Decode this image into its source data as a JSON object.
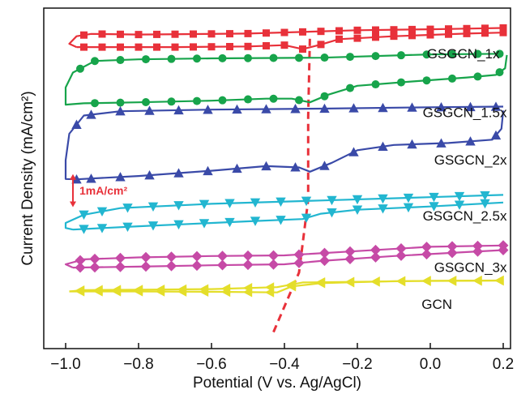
{
  "chart_data": {
    "type": "line",
    "title": "",
    "xlabel": "Potential (V vs. Ag/AgCl)",
    "ylabel": "Current Density (mA/cm²)",
    "xlim": [
      -1.06,
      0.22
    ],
    "ylim": [
      -0.5,
      9.8
    ],
    "x_ticks": [
      -1.0,
      -0.8,
      -0.6,
      -0.4,
      -0.2,
      0.0,
      0.2
    ],
    "x_tick_labels": [
      "−1.0",
      "−0.8",
      "−0.6",
      "−0.4",
      "−0.2",
      "0.0",
      "0.2"
    ],
    "y_ticks_labeled": false,
    "grid": false,
    "scale_bar": {
      "label": "1mA/cm²",
      "value": 1.0,
      "x": -0.98,
      "y_center": 4.28,
      "color": "#e8313a"
    },
    "guide_line": {
      "style": "dashed",
      "color": "#e8313a",
      "points": [
        [
          -0.43,
          0.0
        ],
        [
          -0.36,
          1.8
        ],
        [
          -0.335,
          4.0
        ],
        [
          -0.335,
          6.5
        ],
        [
          -0.33,
          9.0
        ]
      ]
    },
    "series": [
      {
        "name": "GSGCN_1x",
        "color": "#e8313a",
        "marker": "square",
        "forward": [
          [
            -0.97,
            8.62
          ],
          [
            -0.85,
            8.62
          ],
          [
            -0.7,
            8.62
          ],
          [
            -0.5,
            8.64
          ],
          [
            -0.4,
            8.68
          ],
          [
            -0.35,
            8.56
          ],
          [
            -0.3,
            8.7
          ],
          [
            -0.25,
            8.86
          ],
          [
            -0.1,
            8.95
          ],
          [
            0.1,
            9.03
          ],
          [
            0.2,
            9.06
          ]
        ],
        "reverse": [
          [
            0.2,
            9.2
          ],
          [
            0.1,
            9.18
          ],
          [
            0.0,
            9.16
          ],
          [
            -0.2,
            9.13
          ],
          [
            -0.5,
            9.03
          ],
          [
            -0.8,
            9.0
          ],
          [
            -0.93,
            9.02
          ],
          [
            -0.97,
            8.95
          ],
          [
            -0.99,
            8.72
          ],
          [
            -0.97,
            8.62
          ]
        ],
        "marker_x": [
          -0.95,
          -0.9,
          -0.85,
          -0.8,
          -0.75,
          -0.7,
          -0.65,
          -0.6,
          -0.55,
          -0.5,
          -0.45,
          -0.4,
          -0.35,
          -0.3,
          -0.25,
          -0.2,
          -0.15,
          -0.1,
          -0.05,
          0.0,
          0.05,
          0.1,
          0.15,
          0.2
        ]
      },
      {
        "name": "GSGCN_1.5x",
        "color": "#17a44b",
        "marker": "circle",
        "forward": [
          [
            -0.95,
            6.92
          ],
          [
            -0.8,
            6.95
          ],
          [
            -0.6,
            7.0
          ],
          [
            -0.45,
            7.06
          ],
          [
            -0.38,
            7.06
          ],
          [
            -0.33,
            6.95
          ],
          [
            -0.28,
            7.18
          ],
          [
            -0.2,
            7.45
          ],
          [
            -0.05,
            7.58
          ],
          [
            0.1,
            7.7
          ],
          [
            0.18,
            7.78
          ],
          [
            0.205,
            7.98
          ],
          [
            0.21,
            8.38
          ]
        ],
        "reverse": [
          [
            0.2,
            8.42
          ],
          [
            0.0,
            8.4
          ],
          [
            -0.3,
            8.3
          ],
          [
            -0.6,
            8.28
          ],
          [
            -0.8,
            8.25
          ],
          [
            -0.92,
            8.2
          ],
          [
            -0.98,
            7.85
          ],
          [
            -1.0,
            7.4
          ],
          [
            -1.0,
            6.88
          ],
          [
            -0.95,
            6.92
          ]
        ],
        "marker_x": [
          -0.96,
          -0.92,
          -0.85,
          -0.78,
          -0.71,
          -0.64,
          -0.57,
          -0.5,
          -0.43,
          -0.36,
          -0.29,
          -0.22,
          -0.15,
          -0.08,
          -0.01,
          0.06,
          0.13,
          0.19
        ]
      },
      {
        "name": "GSGCN_2x",
        "color": "#3a4aa8",
        "marker": "triangle-up",
        "forward": [
          [
            -0.97,
            4.62
          ],
          [
            -0.8,
            4.72
          ],
          [
            -0.6,
            4.88
          ],
          [
            -0.45,
            5.02
          ],
          [
            -0.36,
            4.98
          ],
          [
            -0.33,
            4.85
          ],
          [
            -0.27,
            5.12
          ],
          [
            -0.2,
            5.5
          ],
          [
            -0.1,
            5.66
          ],
          [
            0.05,
            5.72
          ],
          [
            0.17,
            5.82
          ],
          [
            0.195,
            6.15
          ],
          [
            0.2,
            6.7
          ]
        ],
        "reverse": [
          [
            0.2,
            6.82
          ],
          [
            0.0,
            6.8
          ],
          [
            -0.3,
            6.76
          ],
          [
            -0.6,
            6.73
          ],
          [
            -0.85,
            6.68
          ],
          [
            -0.95,
            6.55
          ],
          [
            -0.99,
            6.0
          ],
          [
            -1.0,
            5.2
          ],
          [
            -1.0,
            4.63
          ],
          [
            -0.97,
            4.62
          ]
        ],
        "marker_x": [
          -0.97,
          -0.93,
          -0.85,
          -0.77,
          -0.69,
          -0.61,
          -0.53,
          -0.45,
          -0.37,
          -0.29,
          -0.21,
          -0.13,
          -0.05,
          0.03,
          0.11,
          0.18
        ]
      },
      {
        "name": "GSGCN_2.5x",
        "color": "#22b6d0",
        "marker": "triangle-down",
        "forward": [
          [
            -0.98,
            3.1
          ],
          [
            -0.8,
            3.2
          ],
          [
            -0.5,
            3.35
          ],
          [
            -0.35,
            3.42
          ],
          [
            -0.3,
            3.58
          ],
          [
            -0.2,
            3.7
          ],
          [
            0.0,
            3.8
          ],
          [
            0.2,
            3.92
          ]
        ],
        "reverse": [
          [
            0.2,
            4.15
          ],
          [
            0.0,
            4.08
          ],
          [
            -0.3,
            3.98
          ],
          [
            -0.6,
            3.88
          ],
          [
            -0.85,
            3.75
          ],
          [
            -0.95,
            3.55
          ],
          [
            -1.0,
            3.3
          ],
          [
            -1.0,
            3.15
          ],
          [
            -0.98,
            3.1
          ]
        ],
        "marker_x": [
          -0.95,
          -0.9,
          -0.83,
          -0.76,
          -0.69,
          -0.62,
          -0.55,
          -0.48,
          -0.41,
          -0.34,
          -0.27,
          -0.2,
          -0.13,
          -0.06,
          0.01,
          0.08,
          0.15
        ]
      },
      {
        "name": "GSGCN_3x",
        "color": "#c64aa6",
        "marker": "diamond",
        "forward": [
          [
            -0.98,
            1.95
          ],
          [
            -0.8,
            1.98
          ],
          [
            -0.6,
            2.02
          ],
          [
            -0.4,
            2.05
          ],
          [
            -0.3,
            2.15
          ],
          [
            -0.1,
            2.3
          ],
          [
            0.1,
            2.42
          ],
          [
            0.2,
            2.48
          ]
        ],
        "reverse": [
          [
            0.2,
            2.62
          ],
          [
            0.0,
            2.58
          ],
          [
            -0.2,
            2.45
          ],
          [
            -0.4,
            2.32
          ],
          [
            -0.6,
            2.3
          ],
          [
            -0.8,
            2.26
          ],
          [
            -0.95,
            2.2
          ],
          [
            -1.0,
            2.05
          ],
          [
            -0.98,
            1.95
          ]
        ],
        "marker_x": [
          -0.96,
          -0.92,
          -0.85,
          -0.78,
          -0.71,
          -0.64,
          -0.57,
          -0.5,
          -0.43,
          -0.36,
          -0.29,
          -0.22,
          -0.15,
          -0.08,
          -0.01,
          0.06,
          0.13,
          0.2
        ]
      },
      {
        "name": "GCN",
        "color": "#e4de2a",
        "marker": "triangle-left",
        "forward": [
          [
            -0.99,
            1.23
          ],
          [
            -0.8,
            1.23
          ],
          [
            -0.6,
            1.22
          ],
          [
            -0.42,
            1.2
          ],
          [
            -0.38,
            1.38
          ],
          [
            -0.3,
            1.48
          ],
          [
            -0.1,
            1.54
          ],
          [
            0.1,
            1.55
          ],
          [
            0.2,
            1.56
          ]
        ],
        "reverse": [
          [
            0.2,
            1.56
          ],
          [
            0.0,
            1.55
          ],
          [
            -0.2,
            1.52
          ],
          [
            -0.35,
            1.5
          ],
          [
            -0.42,
            1.36
          ],
          [
            -0.6,
            1.3
          ],
          [
            -0.8,
            1.28
          ],
          [
            -0.95,
            1.27
          ],
          [
            -0.99,
            1.23
          ]
        ],
        "marker_x": [
          -0.96,
          -0.91,
          -0.86,
          -0.8,
          -0.74,
          -0.68,
          -0.62,
          -0.56,
          -0.5,
          -0.44,
          -0.38,
          -0.3,
          -0.22,
          -0.15,
          -0.08,
          -0.01,
          0.06,
          0.13,
          0.19
        ]
      }
    ],
    "labels": [
      {
        "text": "GSGCN_1x",
        "x": 0.19,
        "y": 8.28
      },
      {
        "text": "GSGCN_1.5x",
        "x": 0.21,
        "y": 6.5
      },
      {
        "text": "GSGCN_2x",
        "x": 0.21,
        "y": 5.07
      },
      {
        "text": "GSGCN_2.5x",
        "x": 0.21,
        "y": 3.38
      },
      {
        "text": "GSGCN_3x",
        "x": 0.21,
        "y": 1.82
      },
      {
        "text": "GCN",
        "x": 0.06,
        "y": 0.7
      }
    ]
  }
}
